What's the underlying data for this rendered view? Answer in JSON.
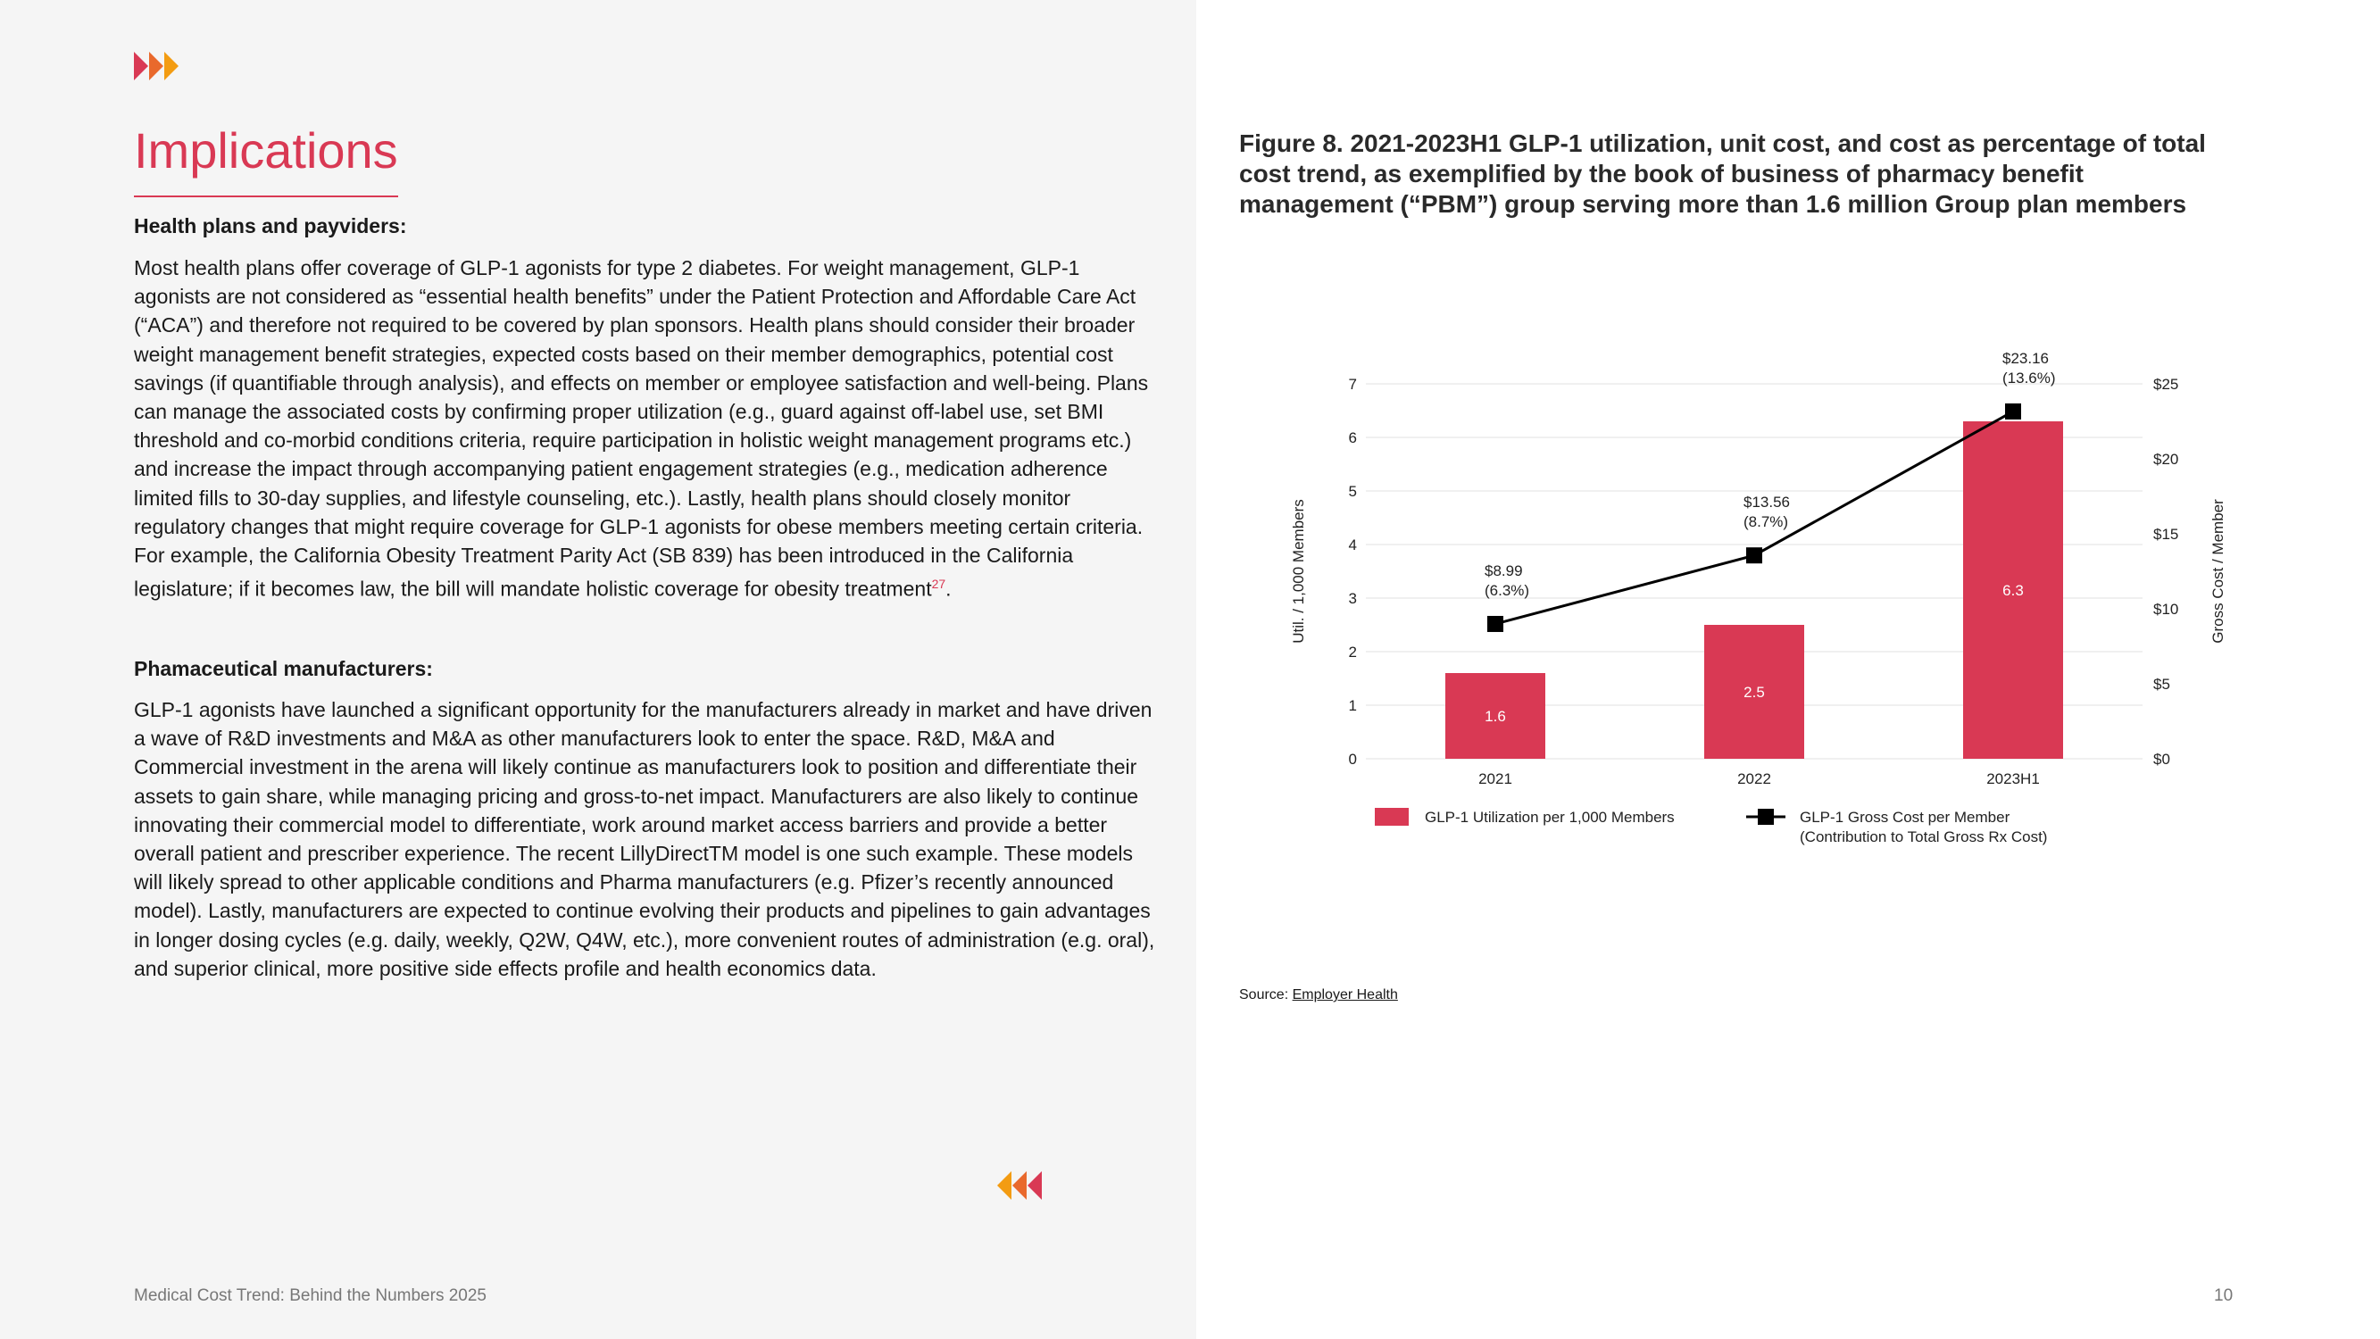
{
  "page": {
    "title": "Implications",
    "footer": "Medical Cost Trend: Behind the Numbers 2025",
    "page_number": "10"
  },
  "sections": [
    {
      "heading": "Health plans and payviders:",
      "body": "Most health plans offer coverage of GLP-1 agonists for type 2 diabetes.  For weight management, GLP-1 agonists are not considered as “essential health benefits” under the Patient Protection and Affordable Care Act (“ACA”) and therefore not required to be covered by plan sponsors. Health plans should consider their broader weight management benefit strategies, expected costs based on their member demographics, potential cost savings (if quantifiable through analysis), and effects on member or employee satisfaction and well-being. Plans can manage the associated costs by confirming proper utilization (e.g., guard against off-label use, set BMI threshold and co-morbid conditions criteria, require participation in holistic weight management programs etc.) and increase the impact through accompanying patient engagement strategies (e.g., medication adherence limited fills to 30-day supplies, and lifestyle counseling, etc.). Lastly, health plans should closely monitor regulatory changes that might require coverage for GLP-1 agonists for obese members meeting certain criteria. For example, the California Obesity Treatment Parity Act (SB 839) has been introduced in the California legislature; if it becomes law, the bill will mandate holistic coverage for obesity treatment",
      "footnote": "27",
      "end": "."
    },
    {
      "heading": "Phamaceutical manufacturers:",
      "body": "GLP-1 agonists have launched a significant opportunity for the manufacturers already in market and have driven a wave of R&D investments and M&A as other manufacturers look to enter the space. R&D, M&A and Commercial investment in the arena will likely continue as manufacturers look to position and differentiate their assets to gain share, while managing pricing and gross-to-net impact. Manufacturers are also likely to continue innovating their commercial model to differentiate, work around market access barriers and provide a better overall patient and prescriber experience. The recent LillyDirectTM model is one such example.  These models will likely spread to other applicable conditions and Pharma manufacturers (e.g. Pfizer’s recently announced model).  Lastly, manufacturers are expected to continue evolving their products and pipelines to gain advantages in longer dosing cycles (e.g. daily, weekly, Q2W, Q4W, etc.), more convenient routes of administration (e.g. oral), and superior clinical, more positive side effects profile and health economics data."
    }
  ],
  "figure": {
    "title": "Figure 8. 2021-2023H1 GLP-1 utilization, unit cost, and cost as percentage of total cost trend, as exemplified by the book of business of pharmacy benefit management (“PBM”) group serving more than 1.6 million Group plan members",
    "source_label": "Source: ",
    "source_link": "Employer Health"
  },
  "colors": {
    "accent": "#d93954",
    "orange": "#f39c12",
    "line": "#000000"
  },
  "chart_data": {
    "type": "bar",
    "categories": [
      "2021",
      "2022",
      "2023H1"
    ],
    "series": [
      {
        "name": "GLP-1 Utilization per 1,000 Members",
        "type": "bar",
        "axis": "left",
        "values": [
          1.6,
          2.5,
          6.3
        ],
        "labels": [
          "1.6",
          "2.5",
          "6.3"
        ],
        "color": "#d93954"
      },
      {
        "name": "GLP-1 Gross Cost per Member",
        "name_line2": "(Contribution to Total Gross Rx Cost)",
        "type": "line",
        "axis": "right",
        "values": [
          8.99,
          13.56,
          23.16
        ],
        "labels": [
          [
            "$8.99",
            "(6.3%)"
          ],
          [
            "$13.56",
            "(8.7%)"
          ],
          [
            "$23.16",
            "(13.6%)"
          ]
        ],
        "color": "#000000"
      }
    ],
    "ylabel": "Util. / 1,000 Members",
    "y2label": "Gross Cost / Member",
    "ylim": [
      0,
      7
    ],
    "yticks": [
      "0",
      "1",
      "2",
      "3",
      "4",
      "5",
      "6",
      "7"
    ],
    "y2lim": [
      0,
      25
    ],
    "y2ticks": [
      "$0",
      "$5",
      "$10",
      "$15",
      "$20",
      "$25"
    ],
    "grid": true,
    "legend": "bottom"
  }
}
